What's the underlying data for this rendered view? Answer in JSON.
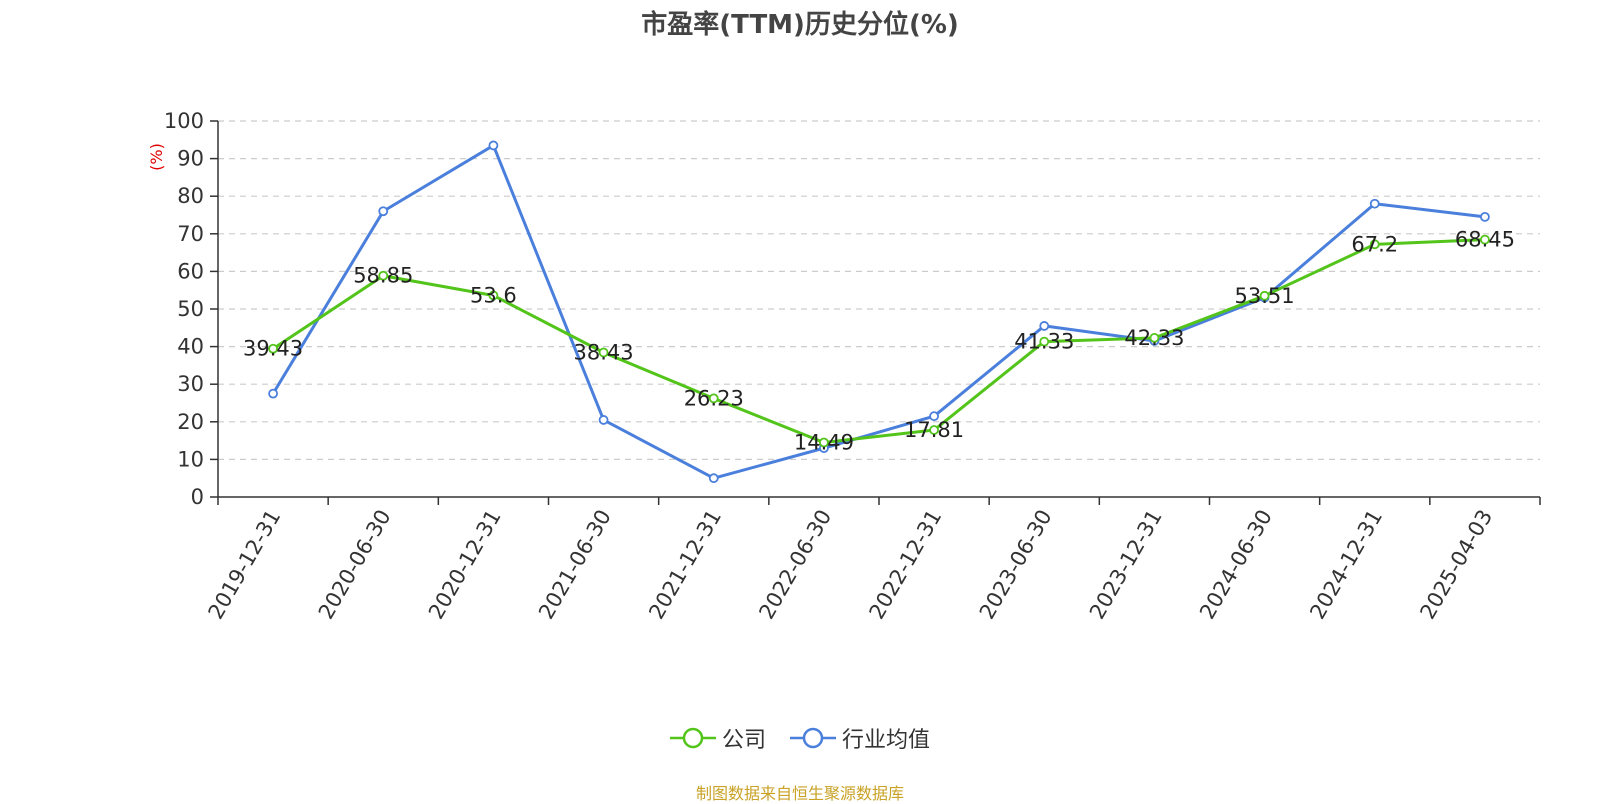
{
  "chart_data": {
    "type": "line",
    "title": "市盈率(TTM)历史分位(%)",
    "ylabel": "(%)",
    "ylim": [
      0,
      100
    ],
    "yticks": [
      0,
      10,
      20,
      30,
      40,
      50,
      60,
      70,
      80,
      90,
      100
    ],
    "grid": true,
    "legend_position": "bottom",
    "categories": [
      "2019-12-31",
      "2020-06-30",
      "2020-12-31",
      "2021-06-30",
      "2021-12-31",
      "2022-06-30",
      "2022-12-31",
      "2023-06-30",
      "2023-12-31",
      "2024-06-30",
      "2024-12-31",
      "2025-04-03"
    ],
    "series": [
      {
        "name": "公司",
        "color": "#52c41a",
        "show_labels": true,
        "values": [
          39.43,
          58.85,
          53.6,
          38.43,
          26.23,
          14.49,
          17.81,
          41.33,
          42.33,
          53.51,
          67.2,
          68.45
        ]
      },
      {
        "name": "行业均值",
        "color": "#4a7fdc",
        "show_labels": false,
        "values": [
          27.5,
          76,
          93.5,
          20.5,
          5,
          13,
          21.5,
          45.5,
          41.5,
          53,
          78,
          74.5
        ]
      }
    ]
  },
  "source": "制图数据来自恒生聚源数据库"
}
